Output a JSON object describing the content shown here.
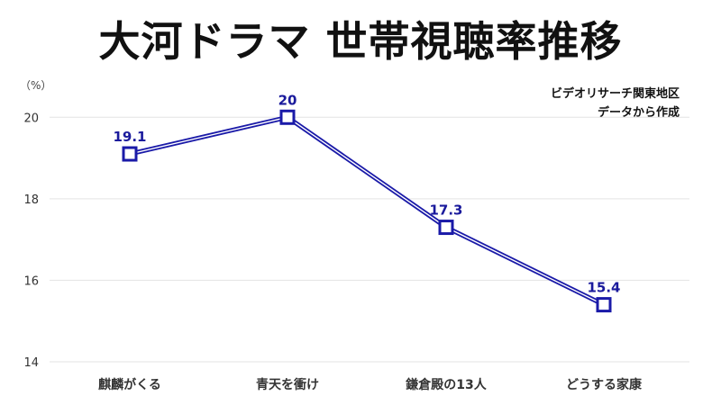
{
  "title": "大河ドラマ 世帯視聴率推移",
  "unit_label": "（%）",
  "source_note": [
    "ビデオリサーチ関東地区",
    "データから作成"
  ],
  "colors": {
    "series": "#1a1aa8",
    "grid": "#e3e3e3",
    "marker_fill": "#ffffff"
  },
  "chart_data": {
    "type": "line",
    "categories": [
      "麒麟がくる",
      "青天を衝け",
      "鎌倉殿の13人",
      "どうする家康"
    ],
    "series": [
      {
        "values": [
          19.1,
          20,
          17.3,
          15.4
        ]
      }
    ],
    "data_labels": [
      "19.1",
      "20",
      "17.3",
      "15.4"
    ],
    "ylim": [
      14,
      21
    ],
    "yticks": [
      14,
      16,
      18,
      20
    ],
    "grid": true,
    "legend": "none"
  }
}
